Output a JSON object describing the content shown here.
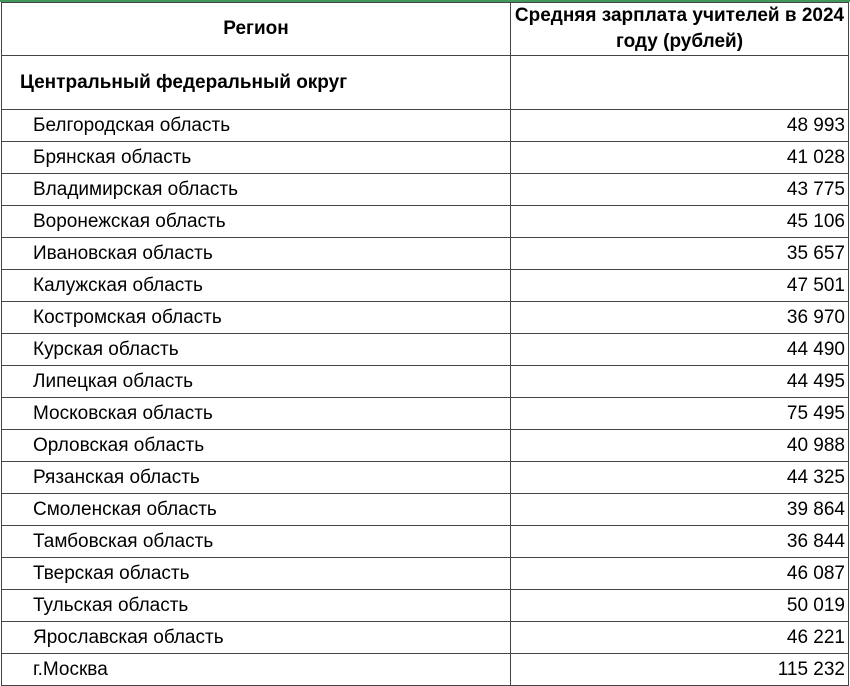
{
  "table": {
    "headers": {
      "region": "Регион",
      "salary": "Средняя зарплата учителей в 2024 году (рублей)"
    },
    "district": "Центральный  федеральный округ",
    "rows": [
      {
        "region": "Белгородская область",
        "value": "48 993"
      },
      {
        "region": "Брянская область",
        "value": "41 028"
      },
      {
        "region": "Владимирская область",
        "value": "43 775"
      },
      {
        "region": "Воронежская область",
        "value": "45 106"
      },
      {
        "region": "Ивановская область",
        "value": "35 657"
      },
      {
        "region": "Калужская область",
        "value": "47 501"
      },
      {
        "region": "Костромская область",
        "value": "36 970"
      },
      {
        "region": "Курская область",
        "value": "44 490"
      },
      {
        "region": "Липецкая область",
        "value": "44 495"
      },
      {
        "region": "Московская область",
        "value": "75 495"
      },
      {
        "region": "Орловская область",
        "value": "40 988"
      },
      {
        "region": "Рязанская область",
        "value": "44 325"
      },
      {
        "region": "Смоленская область",
        "value": "39 864"
      },
      {
        "region": "Тамбовская область",
        "value": "36 844"
      },
      {
        "region": "Тверская область",
        "value": "46 087"
      },
      {
        "region": "Тульская область",
        "value": "50 019"
      },
      {
        "region": "Ярославская область",
        "value": "46 221"
      },
      {
        "region": "г.Москва",
        "value": "115 232"
      }
    ]
  },
  "colors": {
    "border": "#444444",
    "top_accent": "#3f9a5a"
  }
}
